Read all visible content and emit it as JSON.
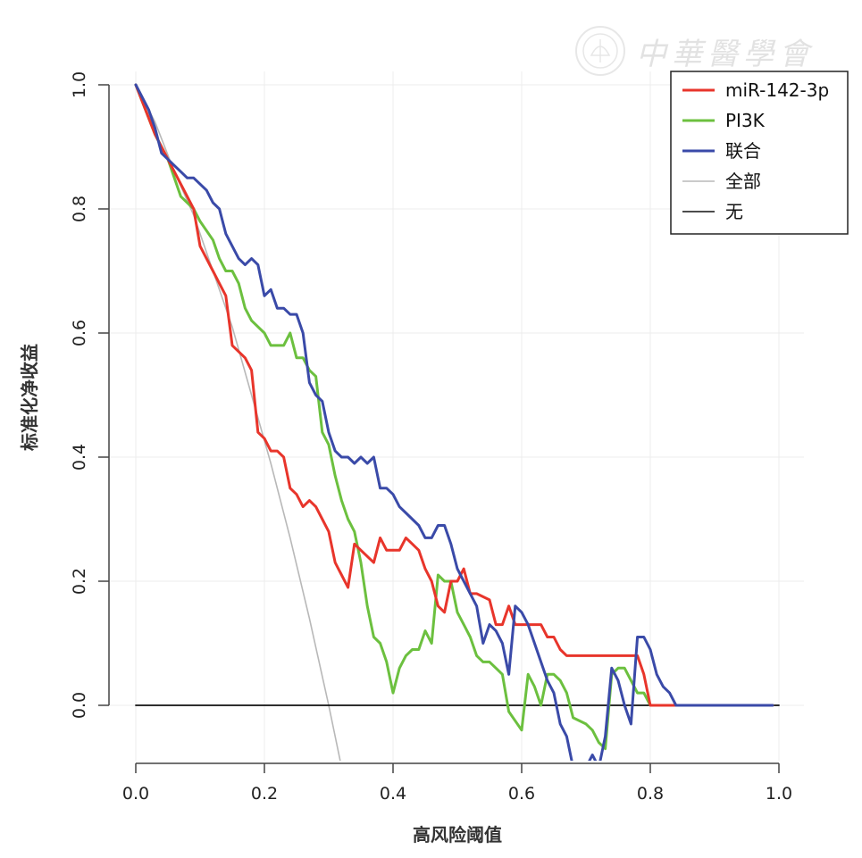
{
  "watermark": {
    "text": "中華醫學會"
  },
  "chart_data": {
    "type": "line",
    "xlabel": "高风险阈值",
    "ylabel": "标准化净收益",
    "xlim": [
      0,
      1
    ],
    "ylim": [
      -0.1,
      1.0
    ],
    "x_ticks": [
      "0.0",
      "0.2",
      "0.4",
      "0.6",
      "0.8",
      "1.0"
    ],
    "y_ticks": [
      "0.0",
      "0.2",
      "0.4",
      "0.6",
      "0.8",
      "1.0"
    ],
    "grid": true,
    "legend_position": "top-right",
    "series": [
      {
        "name": "miR-142-3p",
        "color": "#e8352b",
        "x": [
          0,
          0.03,
          0.05,
          0.08,
          0.09,
          0.1,
          0.12,
          0.13,
          0.14,
          0.15,
          0.17,
          0.18,
          0.19,
          0.2,
          0.21,
          0.22,
          0.23,
          0.24,
          0.25,
          0.26,
          0.27,
          0.28,
          0.29,
          0.3,
          0.31,
          0.32,
          0.33,
          0.34,
          0.35,
          0.37,
          0.38,
          0.39,
          0.4,
          0.41,
          0.42,
          0.43,
          0.44,
          0.45,
          0.46,
          0.47,
          0.48,
          0.49,
          0.5,
          0.51,
          0.52,
          0.53,
          0.55,
          0.56,
          0.57,
          0.58,
          0.59,
          0.6,
          0.61,
          0.63,
          0.64,
          0.65,
          0.66,
          0.67,
          0.7,
          0.73,
          0.76,
          0.78,
          0.79,
          0.8,
          0.85,
          0.99
        ],
        "y": [
          1.0,
          0.92,
          0.88,
          0.82,
          0.8,
          0.74,
          0.7,
          0.68,
          0.66,
          0.58,
          0.56,
          0.54,
          0.44,
          0.43,
          0.41,
          0.41,
          0.4,
          0.35,
          0.34,
          0.32,
          0.33,
          0.32,
          0.3,
          0.28,
          0.23,
          0.21,
          0.19,
          0.26,
          0.25,
          0.23,
          0.27,
          0.25,
          0.25,
          0.25,
          0.27,
          0.26,
          0.25,
          0.22,
          0.2,
          0.16,
          0.15,
          0.2,
          0.2,
          0.22,
          0.18,
          0.18,
          0.17,
          0.13,
          0.13,
          0.16,
          0.13,
          0.13,
          0.13,
          0.13,
          0.11,
          0.11,
          0.09,
          0.08,
          0.08,
          0.08,
          0.08,
          0.08,
          0.05,
          0.0,
          0.0,
          0.0
        ]
      },
      {
        "name": "PI3K",
        "color": "#6cc03f",
        "x": [
          0,
          0.03,
          0.05,
          0.07,
          0.09,
          0.1,
          0.12,
          0.13,
          0.14,
          0.15,
          0.16,
          0.17,
          0.18,
          0.2,
          0.21,
          0.22,
          0.23,
          0.24,
          0.25,
          0.26,
          0.27,
          0.28,
          0.29,
          0.3,
          0.31,
          0.32,
          0.33,
          0.34,
          0.35,
          0.36,
          0.37,
          0.38,
          0.39,
          0.4,
          0.41,
          0.42,
          0.43,
          0.44,
          0.45,
          0.46,
          0.47,
          0.48,
          0.49,
          0.5,
          0.51,
          0.52,
          0.53,
          0.54,
          0.55,
          0.56,
          0.57,
          0.58,
          0.6,
          0.61,
          0.62,
          0.63,
          0.64,
          0.65,
          0.66,
          0.67,
          0.68,
          0.7,
          0.71,
          0.72,
          0.73,
          0.74,
          0.75,
          0.76,
          0.77,
          0.78,
          0.79,
          0.8,
          0.99
        ],
        "y": [
          1.0,
          0.92,
          0.88,
          0.82,
          0.8,
          0.78,
          0.75,
          0.72,
          0.7,
          0.7,
          0.68,
          0.64,
          0.62,
          0.6,
          0.58,
          0.58,
          0.58,
          0.6,
          0.56,
          0.56,
          0.54,
          0.53,
          0.44,
          0.42,
          0.37,
          0.33,
          0.3,
          0.28,
          0.23,
          0.16,
          0.11,
          0.1,
          0.07,
          0.02,
          0.06,
          0.08,
          0.09,
          0.09,
          0.12,
          0.1,
          0.21,
          0.2,
          0.2,
          0.15,
          0.13,
          0.11,
          0.08,
          0.07,
          0.07,
          0.06,
          0.05,
          -0.01,
          -0.04,
          0.05,
          0.03,
          0.0,
          0.05,
          0.05,
          0.04,
          0.02,
          -0.02,
          -0.03,
          -0.04,
          -0.06,
          -0.07,
          0.05,
          0.06,
          0.06,
          0.04,
          0.02,
          0.02,
          0.0,
          0.0
        ]
      },
      {
        "name": "联合",
        "color": "#3a4aa8",
        "x": [
          0,
          0.02,
          0.03,
          0.04,
          0.05,
          0.06,
          0.07,
          0.08,
          0.09,
          0.1,
          0.11,
          0.12,
          0.13,
          0.14,
          0.15,
          0.16,
          0.17,
          0.18,
          0.19,
          0.2,
          0.21,
          0.22,
          0.23,
          0.24,
          0.25,
          0.26,
          0.27,
          0.28,
          0.29,
          0.3,
          0.31,
          0.32,
          0.33,
          0.34,
          0.35,
          0.36,
          0.37,
          0.38,
          0.39,
          0.4,
          0.41,
          0.42,
          0.43,
          0.44,
          0.45,
          0.46,
          0.47,
          0.48,
          0.49,
          0.5,
          0.51,
          0.52,
          0.53,
          0.54,
          0.55,
          0.56,
          0.57,
          0.58,
          0.59,
          0.6,
          0.61,
          0.62,
          0.63,
          0.64,
          0.65,
          0.66,
          0.67,
          0.68,
          0.69,
          0.7,
          0.71,
          0.72,
          0.73,
          0.74,
          0.75,
          0.76,
          0.77,
          0.78,
          0.79,
          0.8,
          0.81,
          0.82,
          0.83,
          0.84,
          0.99
        ],
        "y": [
          1.0,
          0.96,
          0.93,
          0.89,
          0.88,
          0.87,
          0.86,
          0.85,
          0.85,
          0.84,
          0.83,
          0.81,
          0.8,
          0.76,
          0.74,
          0.72,
          0.71,
          0.72,
          0.71,
          0.66,
          0.67,
          0.64,
          0.64,
          0.63,
          0.63,
          0.6,
          0.52,
          0.5,
          0.49,
          0.44,
          0.41,
          0.4,
          0.4,
          0.39,
          0.4,
          0.39,
          0.4,
          0.35,
          0.35,
          0.34,
          0.32,
          0.31,
          0.3,
          0.29,
          0.27,
          0.27,
          0.29,
          0.29,
          0.26,
          0.22,
          0.2,
          0.18,
          0.16,
          0.1,
          0.13,
          0.12,
          0.1,
          0.05,
          0.16,
          0.15,
          0.13,
          0.1,
          0.07,
          0.04,
          0.02,
          -0.03,
          -0.05,
          -0.1,
          -0.1,
          -0.1,
          -0.08,
          -0.1,
          -0.05,
          0.06,
          0.04,
          0.0,
          -0.03,
          0.11,
          0.11,
          0.09,
          0.05,
          0.03,
          0.02,
          0.0,
          0.0
        ]
      },
      {
        "name": "全部",
        "color": "#b8b8b8",
        "x": [
          0,
          0.03,
          0.06,
          0.09,
          0.12,
          0.15,
          0.18,
          0.21,
          0.24,
          0.27,
          0.3,
          0.32
        ],
        "y": [
          1.0,
          0.94,
          0.86,
          0.79,
          0.7,
          0.61,
          0.5,
          0.39,
          0.27,
          0.14,
          0.0,
          -0.1
        ]
      },
      {
        "name": "无",
        "color": "#111111",
        "x": [
          0,
          1.0
        ],
        "y": [
          0.0,
          0.0
        ]
      }
    ]
  }
}
